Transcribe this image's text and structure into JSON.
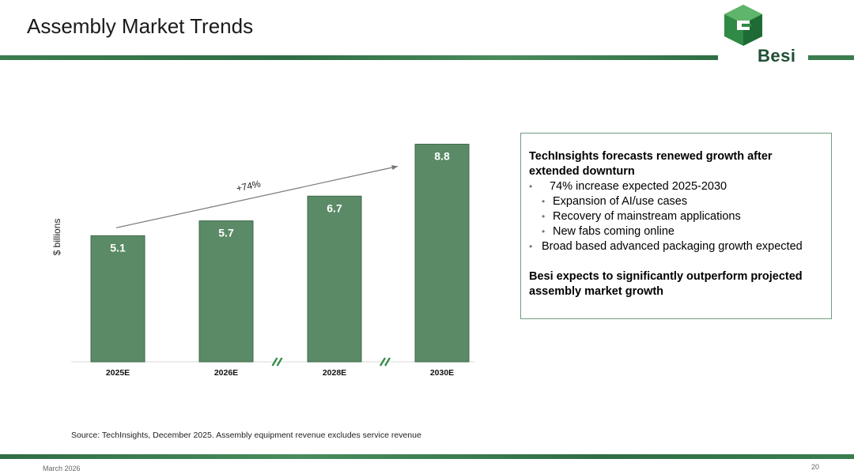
{
  "slide": {
    "title": "Assembly Market Trends",
    "brand": "Besi",
    "source": "Source: TechInsights, December 2025. Assembly equipment revenue excludes service revenue",
    "footer_date": "March 2026",
    "page_number": "20"
  },
  "colors": {
    "bar": "#5b8a66",
    "bar_border": "#3e6b4a",
    "accent": "#2f6e45"
  },
  "chart_data": {
    "type": "bar",
    "categories": [
      "2025E",
      "2026E",
      "2028E",
      "2030E"
    ],
    "values": [
      5.1,
      5.7,
      6.7,
      8.8
    ],
    "value_labels": [
      "5.1",
      "5.7",
      "6.7",
      "8.8"
    ],
    "title": "",
    "xlabel": "",
    "ylabel": "$ billions",
    "ylim": [
      0,
      9.2
    ],
    "annotation": "+74%",
    "axis_breaks_after": [
      "2026E",
      "2028E"
    ]
  },
  "textbox": {
    "heading": "TechInsights forecasts renewed growth after extended downturn",
    "bullets": [
      "74% increase expected 2025-2030",
      "Expansion of AI/use cases",
      "Recovery of mainstream applications",
      "New fabs coming online",
      "Broad based advanced packaging growth expected"
    ],
    "conclusion": "Besi expects to significantly outperform projected assembly market growth"
  }
}
